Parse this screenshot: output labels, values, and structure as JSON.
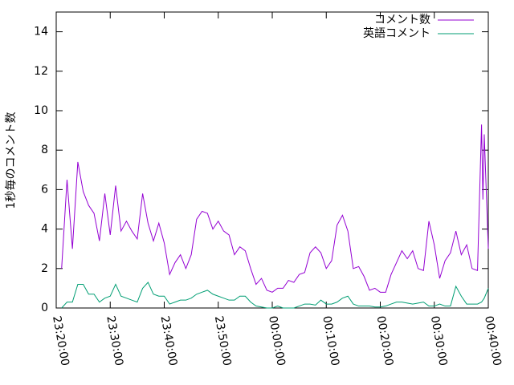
{
  "chart_data": {
    "type": "line",
    "ylabel": "1秒毎のコメント数",
    "x": [
      "23:21:00",
      "23:22:00",
      "23:23:00",
      "23:24:00",
      "23:25:00",
      "23:26:00",
      "23:27:00",
      "23:28:00",
      "23:29:00",
      "23:30:00",
      "23:31:00",
      "23:32:00",
      "23:33:00",
      "23:34:00",
      "23:35:00",
      "23:36:00",
      "23:37:00",
      "23:38:00",
      "23:39:00",
      "23:40:00",
      "23:41:00",
      "23:42:00",
      "23:43:00",
      "23:44:00",
      "23:45:00",
      "23:46:00",
      "23:47:00",
      "23:48:00",
      "23:49:00",
      "23:50:00",
      "23:51:00",
      "23:52:00",
      "23:53:00",
      "23:54:00",
      "23:55:00",
      "23:56:00",
      "23:57:00",
      "23:58:00",
      "23:59:00",
      "00:00:00",
      "00:01:00",
      "00:02:00",
      "00:03:00",
      "00:04:00",
      "00:05:00",
      "00:06:00",
      "00:07:00",
      "00:08:00",
      "00:09:00",
      "00:10:00",
      "00:11:00",
      "00:12:00",
      "00:13:00",
      "00:14:00",
      "00:15:00",
      "00:16:00",
      "00:17:00",
      "00:18:00",
      "00:19:00",
      "00:20:00",
      "00:21:00",
      "00:22:00",
      "00:23:00",
      "00:24:00",
      "00:25:00",
      "00:26:00",
      "00:27:00",
      "00:28:00",
      "00:29:00",
      "00:30:00",
      "00:31:00",
      "00:32:00",
      "00:33:00",
      "00:34:00",
      "00:35:00",
      "00:36:00",
      "00:37:00",
      "00:38:00",
      "00:38:45",
      "00:39:00",
      "00:39:15",
      "00:40:00"
    ],
    "series": [
      {
        "name": "コメント数",
        "color": "#9400d3",
        "values": [
          2.0,
          6.5,
          3.0,
          7.4,
          5.9,
          5.2,
          4.8,
          3.4,
          5.8,
          3.7,
          6.2,
          3.9,
          4.4,
          3.9,
          3.5,
          5.8,
          4.3,
          3.4,
          4.3,
          3.3,
          1.7,
          2.3,
          2.7,
          2.0,
          2.7,
          4.5,
          4.9,
          4.8,
          4.0,
          4.4,
          3.9,
          3.7,
          2.7,
          3.1,
          2.9,
          2.0,
          1.2,
          1.5,
          0.9,
          0.8,
          1.0,
          1.0,
          1.4,
          1.3,
          1.7,
          1.8,
          2.8,
          3.1,
          2.8,
          2.0,
          2.4,
          4.2,
          4.7,
          3.9,
          2.0,
          2.1,
          1.6,
          0.9,
          1.0,
          0.8,
          0.8,
          1.7,
          2.3,
          2.9,
          2.5,
          2.9,
          2.0,
          1.9,
          4.4,
          3.2,
          1.5,
          2.4,
          2.8,
          3.9,
          2.7,
          3.2,
          2.0,
          1.9,
          9.3,
          5.5,
          8.8,
          3.0
        ]
      },
      {
        "name": "英語コメント",
        "color": "#009e73",
        "values": [
          0.0,
          0.3,
          0.3,
          1.2,
          1.2,
          0.7,
          0.7,
          0.3,
          0.5,
          0.6,
          1.2,
          0.6,
          0.5,
          0.4,
          0.3,
          1.0,
          1.3,
          0.7,
          0.6,
          0.6,
          0.2,
          0.3,
          0.4,
          0.4,
          0.5,
          0.7,
          0.8,
          0.9,
          0.7,
          0.6,
          0.5,
          0.4,
          0.4,
          0.6,
          0.6,
          0.3,
          0.1,
          0.05,
          0,
          0,
          0.1,
          0,
          0,
          0,
          0.1,
          0.2,
          0.2,
          0.15,
          0.4,
          0.2,
          0.2,
          0.3,
          0.5,
          0.6,
          0.2,
          0.1,
          0.1,
          0.1,
          0.05,
          0.05,
          0.1,
          0.2,
          0.3,
          0.3,
          0.25,
          0.2,
          0.25,
          0.3,
          0.1,
          0.1,
          0.2,
          0.1,
          0.1,
          1.1,
          0.6,
          0.2,
          0.2,
          0.2,
          0.3,
          0.4,
          0.5,
          1.0
        ]
      }
    ],
    "xlim": [
      "23:20:00",
      "00:40:00"
    ],
    "xticks": [
      "23:20:00",
      "23:30:00",
      "23:40:00",
      "23:50:00",
      "00:00:00",
      "00:10:00",
      "00:20:00",
      "00:30:00",
      "00:40:00"
    ],
    "ylim": [
      0,
      15
    ],
    "yticks": [
      0,
      2,
      4,
      6,
      8,
      10,
      12,
      14
    ],
    "legend": "top-right"
  }
}
